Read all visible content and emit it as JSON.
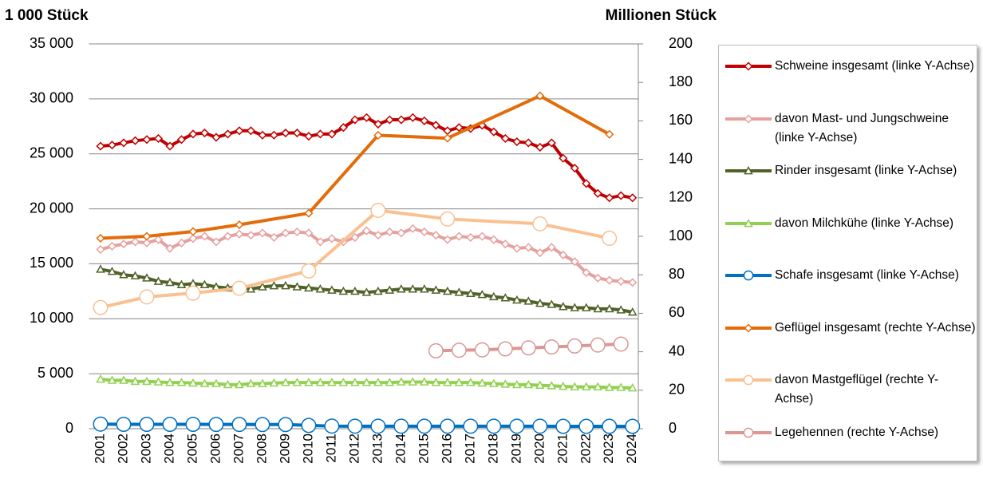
{
  "chart_data": {
    "type": "line",
    "ylabel": "1 000 Stück",
    "y2label": "Millionen Stück",
    "xlim": [
      2000.5,
      2024.25
    ],
    "xticks": [
      2001,
      2002,
      2003,
      2004,
      2005,
      2006,
      2007,
      2008,
      2009,
      2010,
      2011,
      2012,
      2013,
      2014,
      2015,
      2016,
      2017,
      2018,
      2019,
      2020,
      2021,
      2022,
      2023,
      2024
    ],
    "ylim": [
      0,
      35000
    ],
    "yticks": [
      0,
      {
        "value": 5000,
        "label": "5 000"
      },
      {
        "value": 10000,
        "label": "10 000"
      },
      {
        "value": 15000,
        "label": "15 000"
      },
      {
        "value": 20000,
        "label": "20 000"
      },
      {
        "value": 25000,
        "label": "25 000"
      },
      {
        "value": 30000,
        "label": "30 000"
      },
      {
        "value": 35000,
        "label": "35 000"
      }
    ],
    "y2lim": [
      0,
      200
    ],
    "y2ticks": [
      0,
      20,
      40,
      60,
      80,
      100,
      120,
      140,
      160,
      180,
      200
    ],
    "grid": true,
    "series": [
      {
        "name": "Schweine insgesamt (linke Y-Achse)",
        "color": "#c00000",
        "marker": "diamond",
        "axis": "y",
        "x": [
          2001,
          2001.5,
          2002,
          2002.5,
          2003,
          2003.5,
          2004,
          2004.5,
          2005,
          2005.5,
          2006,
          2006.5,
          2007,
          2007.5,
          2008,
          2008.5,
          2009,
          2009.5,
          2010,
          2010.5,
          2011,
          2011.5,
          2012,
          2012.5,
          2013,
          2013.5,
          2014,
          2014.5,
          2015,
          2015.5,
          2016,
          2016.5,
          2017,
          2017.5,
          2018,
          2018.5,
          2019,
          2019.5,
          2020,
          2020.5,
          2021,
          2021.5,
          2022,
          2022.5,
          2023,
          2023.5,
          2024
        ],
        "values": [
          25700,
          25800,
          26000,
          26200,
          26300,
          26400,
          25700,
          26300,
          26800,
          26900,
          26500,
          26800,
          27100,
          27100,
          26700,
          26700,
          26900,
          26900,
          26600,
          26800,
          26800,
          27400,
          28100,
          28300,
          27700,
          28100,
          28100,
          28300,
          28000,
          27600,
          27100,
          27400,
          27300,
          27600,
          27000,
          26400,
          26100,
          26000,
          25600,
          26000,
          24600,
          23700,
          22300,
          21400,
          21000,
          21200,
          21000
        ]
      },
      {
        "name": "davon Mast- und Jungschweine (linke Y-Achse)",
        "color": "#e6a0a0",
        "marker": "diamond",
        "axis": "y",
        "x": [
          2001,
          2001.5,
          2002,
          2002.5,
          2003,
          2003.5,
          2004,
          2004.5,
          2005,
          2005.5,
          2006,
          2006.5,
          2007,
          2007.5,
          2008,
          2008.5,
          2009,
          2009.5,
          2010,
          2010.5,
          2011,
          2011.5,
          2012,
          2012.5,
          2013,
          2013.5,
          2014,
          2014.5,
          2015,
          2015.5,
          2016,
          2016.5,
          2017,
          2017.5,
          2018,
          2018.5,
          2019,
          2019.5,
          2020,
          2020.5,
          2021,
          2021.5,
          2022,
          2022.5,
          2023,
          2023.5,
          2024
        ],
        "values": [
          16300,
          16600,
          16800,
          17000,
          16900,
          17200,
          16400,
          16900,
          17300,
          17500,
          17000,
          17500,
          17700,
          17600,
          17800,
          17400,
          17800,
          17900,
          17800,
          17000,
          17300,
          17000,
          17400,
          18000,
          17600,
          17900,
          17800,
          18200,
          17900,
          17600,
          17200,
          17500,
          17400,
          17500,
          17200,
          16800,
          16400,
          16500,
          16000,
          16500,
          15800,
          15200,
          14200,
          13700,
          13500,
          13400,
          13300
        ]
      },
      {
        "name": "Rinder insgesamt (linke Y-Achse)",
        "color": "#4f6228",
        "marker": "triangle",
        "axis": "y",
        "x": [
          2001,
          2001.5,
          2002,
          2002.5,
          2003,
          2003.5,
          2004,
          2004.5,
          2005,
          2005.5,
          2006,
          2006.5,
          2007,
          2007.5,
          2008,
          2008.5,
          2009,
          2009.5,
          2010,
          2010.5,
          2011,
          2011.5,
          2012,
          2012.5,
          2013,
          2013.5,
          2014,
          2014.5,
          2015,
          2015.5,
          2016,
          2016.5,
          2017,
          2017.5,
          2018,
          2018.5,
          2019,
          2019.5,
          2020,
          2020.5,
          2021,
          2021.5,
          2022,
          2022.5,
          2023,
          2023.5,
          2024
        ],
        "values": [
          14500,
          14300,
          14000,
          13900,
          13700,
          13400,
          13300,
          13100,
          13200,
          13100,
          12900,
          12800,
          12900,
          12700,
          12900,
          13000,
          13000,
          12900,
          12800,
          12700,
          12600,
          12500,
          12500,
          12400,
          12500,
          12600,
          12700,
          12700,
          12700,
          12600,
          12500,
          12400,
          12300,
          12200,
          12000,
          11900,
          11700,
          11600,
          11400,
          11300,
          11100,
          11000,
          11000,
          10900,
          10900,
          10800,
          10600
        ]
      },
      {
        "name": "davon Milchkühe (linke Y-Achse)",
        "color": "#92d050",
        "marker": "triangle",
        "axis": "y",
        "x": [
          2001,
          2001.5,
          2002,
          2002.5,
          2003,
          2003.5,
          2004,
          2004.5,
          2005,
          2005.5,
          2006,
          2006.5,
          2007,
          2007.5,
          2008,
          2008.5,
          2009,
          2009.5,
          2010,
          2010.5,
          2011,
          2011.5,
          2012,
          2012.5,
          2013,
          2013.5,
          2014,
          2014.5,
          2015,
          2015.5,
          2016,
          2016.5,
          2017,
          2017.5,
          2018,
          2018.5,
          2019,
          2019.5,
          2020,
          2020.5,
          2021,
          2021.5,
          2022,
          2022.5,
          2023,
          2023.5,
          2024
        ],
        "values": [
          4500,
          4400,
          4400,
          4300,
          4300,
          4250,
          4200,
          4200,
          4150,
          4100,
          4100,
          4000,
          4000,
          4100,
          4100,
          4150,
          4200,
          4200,
          4200,
          4200,
          4200,
          4200,
          4200,
          4200,
          4200,
          4200,
          4250,
          4250,
          4250,
          4200,
          4200,
          4200,
          4200,
          4150,
          4100,
          4050,
          4000,
          4000,
          3950,
          3900,
          3850,
          3800,
          3800,
          3800,
          3750,
          3750,
          3700
        ]
      },
      {
        "name": "Schafe insgesamt (linke Y-Achse)",
        "color": "#0070c0",
        "marker": "circle",
        "axis": "y",
        "x": [
          2001,
          2002,
          2003,
          2004,
          2005,
          2006,
          2007,
          2008,
          2009,
          2010,
          2011,
          2012,
          2013,
          2014,
          2015,
          2016,
          2017,
          2018,
          2019,
          2020,
          2021,
          2022,
          2023,
          2024
        ],
        "values": [
          420,
          400,
          400,
          400,
          400,
          390,
          390,
          380,
          380,
          300,
          240,
          230,
          230,
          230,
          230,
          230,
          230,
          230,
          230,
          230,
          220,
          220,
          220,
          220
        ]
      },
      {
        "name": "Geflügel insgesamt (rechte Y-Achse)",
        "color": "#e36c09",
        "marker": "diamond",
        "axis": "y2",
        "x": [
          2001,
          2003,
          2005,
          2007,
          2010,
          2013,
          2016,
          2020,
          2023
        ],
        "values": [
          99,
          100,
          102.5,
          106,
          112,
          152.5,
          151,
          173,
          153
        ]
      },
      {
        "name": "davon Mastgeflügel (rechte Y-Achse)",
        "color": "#fac090",
        "marker": "circle",
        "axis": "y2",
        "x": [
          2001,
          2003,
          2005,
          2007,
          2010,
          2013,
          2016,
          2020,
          2023
        ],
        "values": [
          63,
          68.5,
          70.5,
          73,
          82,
          113.5,
          109,
          106.5,
          99
        ]
      },
      {
        "name": "Legehennen (rechte Y-Achse)",
        "color": "#d99795",
        "marker": "circle",
        "axis": "y2",
        "x": [
          2015.5,
          2016.5,
          2017.5,
          2018.5,
          2019.5,
          2020.5,
          2021.5,
          2022.5,
          2023.5
        ],
        "values": [
          40.5,
          40.8,
          41,
          41.5,
          42,
          42.5,
          43,
          43.5,
          44
        ]
      }
    ]
  }
}
